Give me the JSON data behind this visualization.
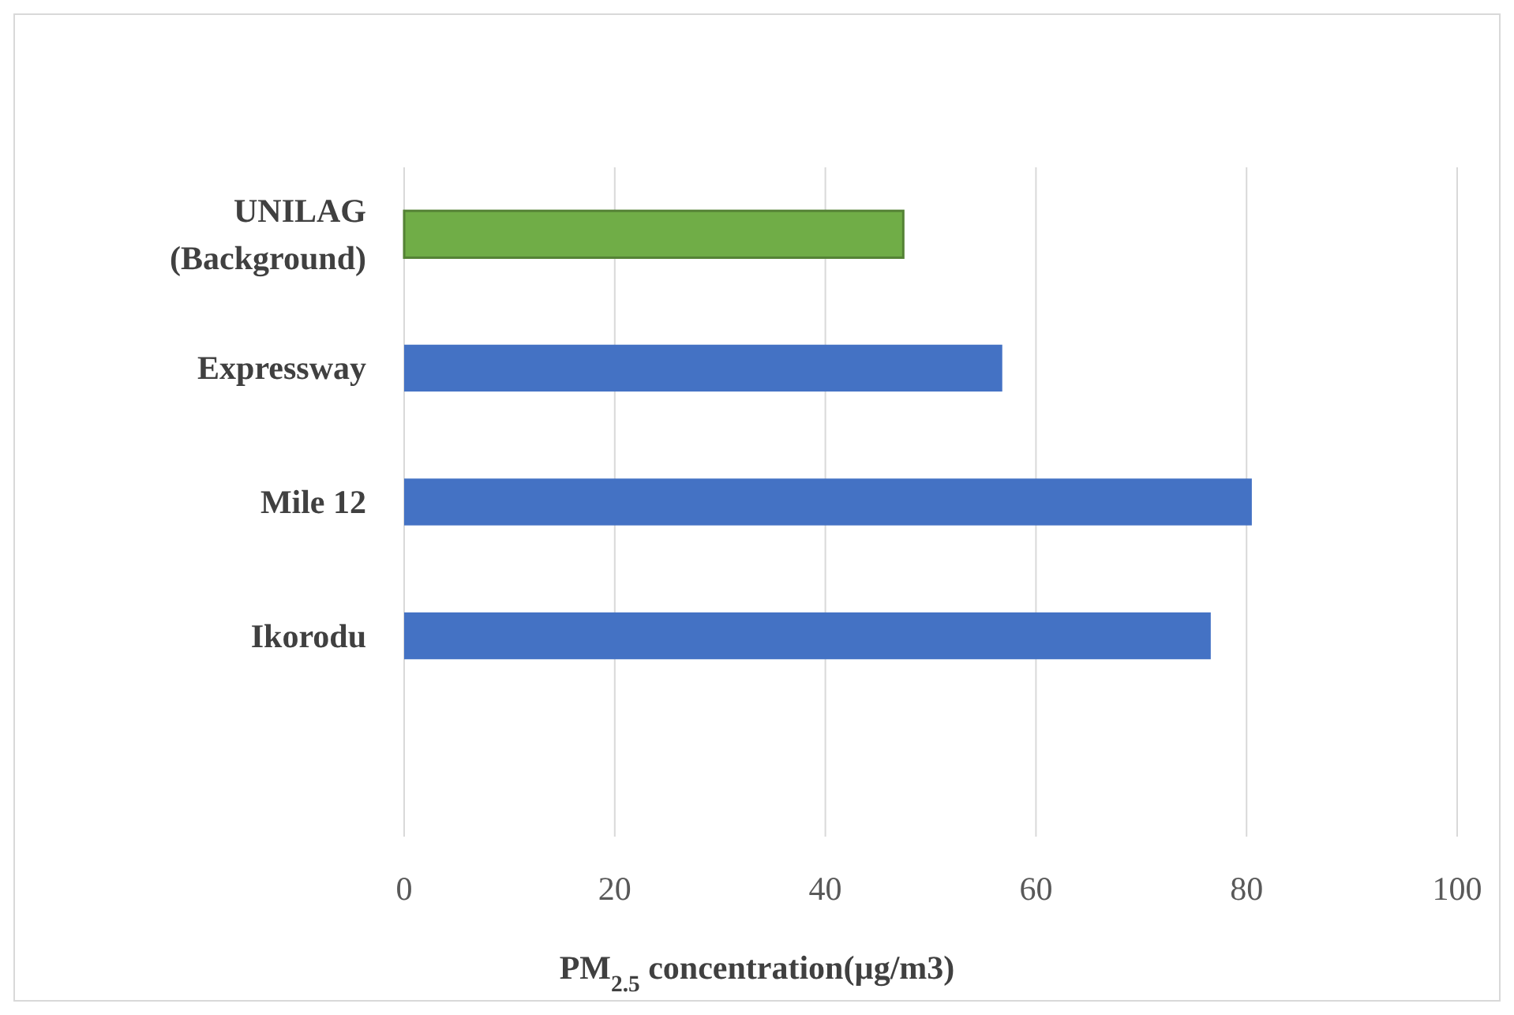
{
  "chart_data": {
    "type": "bar",
    "orientation": "horizontal",
    "xlabel": "PM$_{2.5}$ concentration(µg/m3)",
    "categories": [
      "UNILAG (Background)",
      "Expressway",
      "Mile 12",
      "Ikorodu",
      null
    ],
    "values": [
      47.4,
      56.8,
      80.5,
      76.6,
      null
    ],
    "colors": [
      "#70ad47",
      "#4472c4",
      "#4472c4",
      "#4472c4",
      null
    ],
    "xlim": [
      0,
      100
    ],
    "xticks": [
      0,
      20,
      40,
      60,
      80,
      100
    ],
    "grid": "x"
  }
}
